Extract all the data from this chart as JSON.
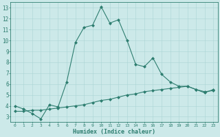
{
  "background_color": "#cce9e9",
  "grid_color": "#aad4d4",
  "line_color": "#2d7d6f",
  "xlabel": "Humidex (Indice chaleur)",
  "xlim": [
    -0.5,
    23.5
  ],
  "ylim": [
    2.5,
    13.5
  ],
  "xticks": [
    0,
    1,
    2,
    3,
    4,
    5,
    6,
    7,
    8,
    9,
    10,
    11,
    12,
    13,
    14,
    15,
    16,
    17,
    18,
    19,
    20,
    21,
    22,
    23
  ],
  "yticks": [
    3,
    4,
    5,
    6,
    7,
    8,
    9,
    10,
    11,
    12,
    13
  ],
  "line1_x": [
    0,
    1,
    2,
    3,
    4,
    5,
    6,
    7,
    8,
    9,
    10,
    11,
    12,
    13,
    14,
    15,
    16,
    17,
    18,
    19,
    20,
    21,
    22,
    23
  ],
  "line1_y": [
    4.0,
    3.7,
    3.3,
    2.8,
    4.1,
    3.9,
    6.2,
    9.8,
    11.2,
    11.4,
    13.1,
    11.6,
    11.9,
    10.0,
    7.8,
    7.6,
    8.4,
    6.9,
    6.2,
    5.8,
    5.8,
    5.5,
    5.2,
    5.5
  ],
  "line2_x": [
    0,
    1,
    2,
    3,
    4,
    5,
    6,
    7,
    8,
    9,
    10,
    11,
    12,
    13,
    14,
    15,
    16,
    17,
    18,
    19,
    20,
    21,
    22,
    23
  ],
  "line2_y": [
    3.5,
    3.5,
    3.6,
    3.6,
    3.7,
    3.8,
    3.9,
    4.0,
    4.1,
    4.3,
    4.5,
    4.6,
    4.8,
    5.0,
    5.1,
    5.3,
    5.4,
    5.5,
    5.6,
    5.7,
    5.8,
    5.5,
    5.3,
    5.4
  ]
}
